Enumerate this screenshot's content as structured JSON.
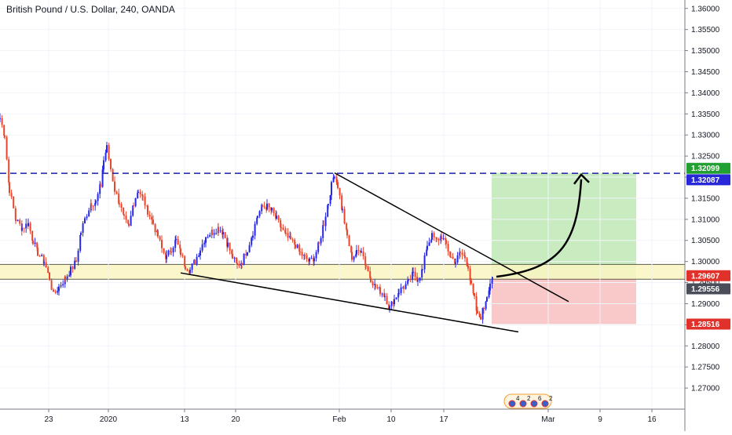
{
  "header": {
    "title": "British Pound / U.S. Dollar, 240, OANDA"
  },
  "colors": {
    "bull": "#2727e6",
    "bear": "#e7452c",
    "target_zone": "#c8ecc0",
    "stop_zone": "#f9c9c9",
    "support_zone": "#fbf6c2",
    "dashed_level": "#1b1fa8",
    "green_tag": "#22a032",
    "blue_tag": "#2828d8",
    "red_tag": "#e0322a",
    "dark_tag": "#4a4e5a"
  },
  "chart_data": {
    "type": "candlestick",
    "instrument": "British Pound / U.S. Dollar",
    "timeframe": "240",
    "broker": "OANDA",
    "y_axis": {
      "min": 1.265,
      "max": 1.362,
      "ticks": [
        "1.36000",
        "1.35500",
        "1.35000",
        "1.34500",
        "1.34000",
        "1.33500",
        "1.33000",
        "1.32500",
        "1.32000",
        "1.31500",
        "1.31000",
        "1.30500",
        "1.30000",
        "1.29500",
        "1.29000",
        "1.28500",
        "1.28000",
        "1.27500",
        "1.27000"
      ]
    },
    "x_axis": {
      "ticks": [
        {
          "label": "23",
          "bar": 62
        },
        {
          "label": "2020",
          "bar": 138
        },
        {
          "label": "13",
          "bar": 235
        },
        {
          "label": "20",
          "bar": 300
        },
        {
          "label": "Feb",
          "bar": 432
        },
        {
          "label": "10",
          "bar": 498
        },
        {
          "label": "17",
          "bar": 565
        },
        {
          "label": "Mar",
          "bar": 698
        },
        {
          "label": "9",
          "bar": 764
        },
        {
          "label": "16",
          "bar": 830
        }
      ]
    },
    "waypoints": [
      [
        0,
        1.334
      ],
      [
        6,
        1.33
      ],
      [
        12,
        1.317
      ],
      [
        20,
        1.31
      ],
      [
        28,
        1.308
      ],
      [
        36,
        1.309
      ],
      [
        42,
        1.305
      ],
      [
        48,
        1.302
      ],
      [
        56,
        1.3
      ],
      [
        63,
        1.296
      ],
      [
        68,
        1.292
      ],
      [
        75,
        1.294
      ],
      [
        83,
        1.296
      ],
      [
        90,
        1.298
      ],
      [
        97,
        1.3
      ],
      [
        103,
        1.307
      ],
      [
        108,
        1.31
      ],
      [
        116,
        1.314
      ],
      [
        122,
        1.314
      ],
      [
        128,
        1.318
      ],
      [
        132,
        1.324
      ],
      [
        136,
        1.327
      ],
      [
        141,
        1.322
      ],
      [
        146,
        1.317
      ],
      [
        152,
        1.314
      ],
      [
        158,
        1.31
      ],
      [
        164,
        1.308
      ],
      [
        170,
        1.314
      ],
      [
        176,
        1.317
      ],
      [
        182,
        1.315
      ],
      [
        188,
        1.312
      ],
      [
        195,
        1.309
      ],
      [
        201,
        1.306
      ],
      [
        206,
        1.303
      ],
      [
        212,
        1.301
      ],
      [
        218,
        1.303
      ],
      [
        224,
        1.305
      ],
      [
        230,
        1.302
      ],
      [
        236,
        1.299
      ],
      [
        242,
        1.298
      ],
      [
        248,
        1.3
      ],
      [
        255,
        1.303
      ],
      [
        262,
        1.306
      ],
      [
        270,
        1.307
      ],
      [
        278,
        1.308
      ],
      [
        284,
        1.307
      ],
      [
        290,
        1.304
      ],
      [
        296,
        1.301
      ],
      [
        302,
        1.299
      ],
      [
        308,
        1.3
      ],
      [
        315,
        1.303
      ],
      [
        322,
        1.307
      ],
      [
        328,
        1.311
      ],
      [
        334,
        1.313
      ],
      [
        340,
        1.313
      ],
      [
        346,
        1.312
      ],
      [
        352,
        1.31
      ],
      [
        358,
        1.308
      ],
      [
        364,
        1.306
      ],
      [
        370,
        1.305
      ],
      [
        376,
        1.304
      ],
      [
        382,
        1.302
      ],
      [
        388,
        1.301
      ],
      [
        394,
        1.3
      ],
      [
        400,
        1.301
      ],
      [
        406,
        1.304
      ],
      [
        412,
        1.309
      ],
      [
        418,
        1.314
      ],
      [
        422,
        1.318
      ],
      [
        426,
        1.3209
      ],
      [
        430,
        1.318
      ],
      [
        436,
        1.312
      ],
      [
        442,
        1.306
      ],
      [
        448,
        1.301
      ],
      [
        454,
        1.302
      ],
      [
        460,
        1.303
      ],
      [
        466,
        1.299
      ],
      [
        472,
        1.296
      ],
      [
        478,
        1.294
      ],
      [
        484,
        1.293
      ],
      [
        490,
        1.292
      ],
      [
        496,
        1.289
      ],
      [
        502,
        1.291
      ],
      [
        508,
        1.293
      ],
      [
        514,
        1.294
      ],
      [
        520,
        1.295
      ],
      [
        526,
        1.297
      ],
      [
        532,
        1.296
      ],
      [
        538,
        1.298
      ],
      [
        544,
        1.304
      ],
      [
        550,
        1.306
      ],
      [
        556,
        1.305
      ],
      [
        562,
        1.306
      ],
      [
        568,
        1.304
      ],
      [
        574,
        1.301
      ],
      [
        580,
        1.3
      ],
      [
        586,
        1.302
      ],
      [
        592,
        1.301
      ],
      [
        596,
        1.299
      ],
      [
        600,
        1.294
      ],
      [
        604,
        1.291
      ],
      [
        608,
        1.287
      ],
      [
        612,
        1.287
      ],
      [
        616,
        1.289
      ],
      [
        620,
        1.292
      ],
      [
        624,
        1.295
      ],
      [
        627,
        1.2962
      ]
    ],
    "levels": {
      "resistance_dashed": 1.3209,
      "target_top": 1.321,
      "entry": 1.2961,
      "stop": 1.2852,
      "support_zone_top": 1.2993,
      "support_zone_bottom": 1.2958
    },
    "trendlines": [
      {
        "name": "upper",
        "from": [
          426,
          1.321
        ],
        "to": [
          724,
          1.2905
        ]
      },
      {
        "name": "lower",
        "from": [
          230,
          1.2973
        ],
        "to": [
          660,
          1.2833
        ]
      }
    ],
    "trade": {
      "start_bar": 626,
      "end_bar": 810
    },
    "price_tags": {
      "green": "1.32099",
      "blue": "1.32087",
      "red_current": "1.29607",
      "dark": "1.29556",
      "red_stop": "1.28516"
    },
    "event_icons": [
      "4",
      "2",
      "6",
      "2"
    ]
  }
}
